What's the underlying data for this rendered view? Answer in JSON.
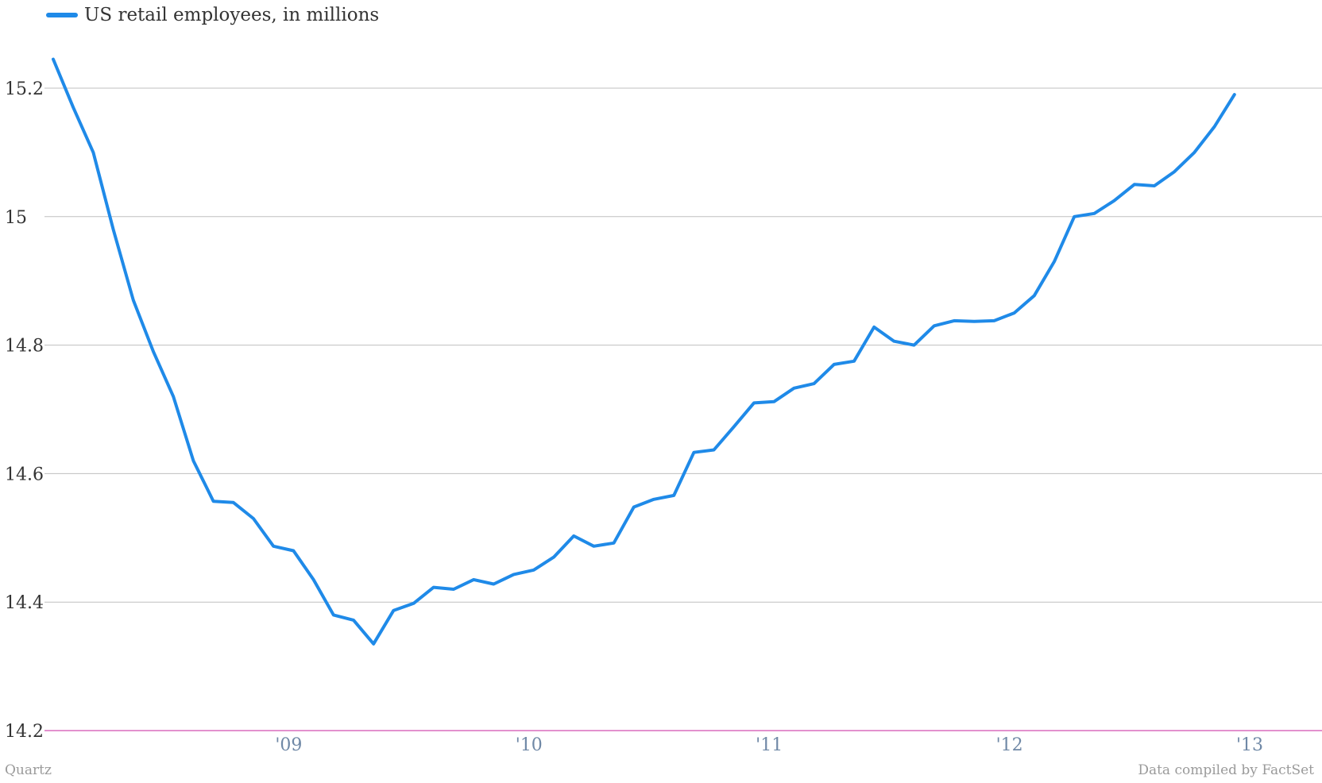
{
  "chart_data": {
    "type": "line",
    "x_start": "2008-02",
    "x_step": "month",
    "xticks": [
      {
        "label": "'09",
        "x": 12
      },
      {
        "label": "'10",
        "x": 24
      },
      {
        "label": "'11",
        "x": 36
      },
      {
        "label": "'12",
        "x": 48
      },
      {
        "label": "'13",
        "x": 60
      }
    ],
    "yticks": [
      {
        "label": "14.2",
        "value": 14.2
      },
      {
        "label": "14.4",
        "value": 14.4
      },
      {
        "label": "14.6",
        "value": 14.6
      },
      {
        "label": "14.8",
        "value": 14.8
      },
      {
        "label": "15",
        "value": 15.0
      },
      {
        "label": "15.2",
        "value": 15.2
      }
    ],
    "ylim": [
      14.2,
      15.25
    ],
    "grid": true,
    "legend": "top-left",
    "series": [
      {
        "name": "US retail employees, in millions",
        "color": "#1f8ae8",
        "values": [
          15.245,
          15.17,
          15.1,
          14.98,
          14.87,
          14.79,
          14.72,
          14.62,
          14.557,
          14.555,
          14.53,
          14.487,
          14.48,
          14.435,
          14.38,
          14.372,
          14.335,
          14.387,
          14.398,
          14.423,
          14.42,
          14.435,
          14.428,
          14.443,
          14.45,
          14.47,
          14.503,
          14.487,
          14.492,
          14.548,
          14.56,
          14.566,
          14.633,
          14.637,
          14.673,
          14.71,
          14.712,
          14.733,
          14.74,
          14.77,
          14.775,
          14.828,
          14.806,
          14.8,
          14.83,
          14.838,
          14.837,
          14.838,
          14.85,
          14.877,
          14.93,
          15.0,
          15.005,
          15.025,
          15.05,
          15.048,
          15.07,
          15.1,
          15.14,
          15.19
        ]
      }
    ]
  },
  "footer": {
    "source_left": "Quartz",
    "source_right": "Data compiled by FactSet"
  }
}
